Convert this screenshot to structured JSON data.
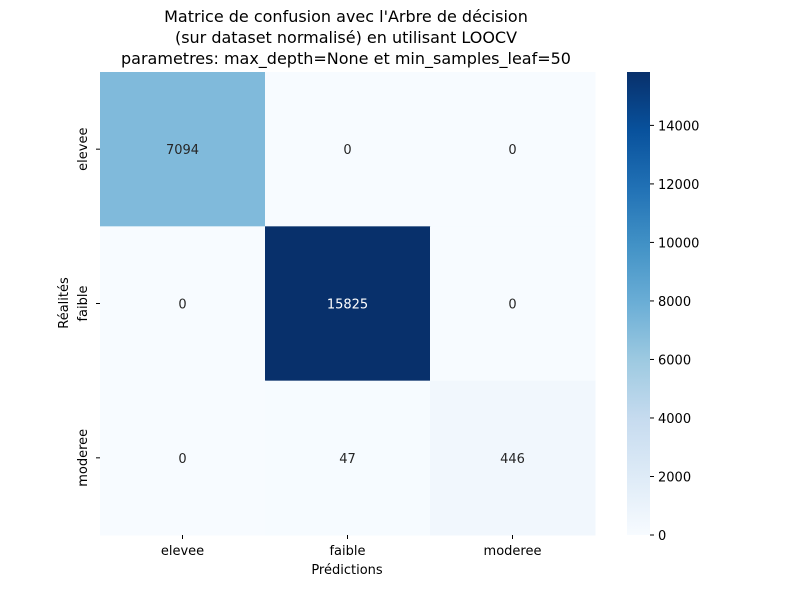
{
  "chart_data": {
    "type": "heatmap",
    "title_lines": [
      "Matrice de confusion avec l'Arbre de décision",
      "(sur dataset normalisé) en utilisant LOOCV",
      "parametres: max_depth=None et min_samples_leaf=50"
    ],
    "xlabel": "Prédictions",
    "ylabel": "Réalités",
    "x_categories": [
      "elevee",
      "faible",
      "moderee"
    ],
    "y_categories": [
      "elevee",
      "faible",
      "moderee"
    ],
    "matrix": [
      [
        7094,
        0,
        0
      ],
      [
        0,
        15825,
        0
      ],
      [
        0,
        47,
        446
      ]
    ],
    "colormap": "Blues",
    "colorbar": {
      "min": 0,
      "max": 15825,
      "ticks": [
        0,
        2000,
        4000,
        6000,
        8000,
        10000,
        12000,
        14000
      ]
    },
    "annotations": true
  }
}
